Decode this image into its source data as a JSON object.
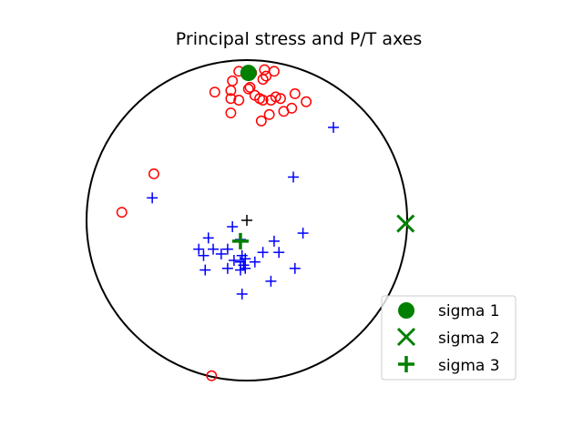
{
  "chart_data": {
    "type": "scatter",
    "projection": "stereonet",
    "title": "Principal stress and P/T axes",
    "grid": false,
    "legend_placement": "lower-right",
    "series": [
      {
        "kind": "P-axes",
        "marker": "circle-open",
        "color": "#ff0000",
        "points": [
          [
            0.03,
            0.92
          ],
          [
            -0.05,
            0.93
          ],
          [
            0.11,
            0.94
          ],
          [
            0.17,
            0.93
          ],
          [
            0.12,
            0.9
          ],
          [
            0.1,
            0.88
          ],
          [
            -0.09,
            0.87
          ],
          [
            -0.2,
            0.8
          ],
          [
            -0.1,
            0.81
          ],
          [
            0.02,
            0.83
          ],
          [
            0.05,
            0.78
          ],
          [
            0.08,
            0.76
          ],
          [
            0.1,
            0.75
          ],
          [
            0.15,
            0.75
          ],
          [
            0.18,
            0.77
          ],
          [
            0.21,
            0.76
          ],
          [
            0.3,
            0.79
          ],
          [
            0.37,
            0.74
          ],
          [
            0.28,
            0.7
          ],
          [
            0.23,
            0.68
          ],
          [
            0.14,
            0.66
          ],
          [
            -0.1,
            0.67
          ],
          [
            0.09,
            0.62
          ],
          [
            -0.05,
            0.75
          ],
          [
            -0.1,
            0.76
          ],
          [
            -0.58,
            0.29
          ],
          [
            -0.78,
            0.05
          ],
          [
            -0.22,
            -0.97
          ],
          [
            0.01,
            0.82
          ]
        ]
      },
      {
        "kind": "T-axes",
        "marker": "plus",
        "color": "#0000ff",
        "points": [
          [
            0.54,
            0.58
          ],
          [
            0.29,
            0.27
          ],
          [
            -0.59,
            0.14
          ],
          [
            -0.09,
            -0.04
          ],
          [
            0.35,
            -0.08
          ],
          [
            -0.24,
            -0.11
          ],
          [
            -0.04,
            -0.12
          ],
          [
            0.17,
            -0.13
          ],
          [
            -0.3,
            -0.18
          ],
          [
            -0.21,
            -0.18
          ],
          [
            -0.12,
            -0.18
          ],
          [
            -0.16,
            -0.21
          ],
          [
            -0.27,
            -0.22
          ],
          [
            0.1,
            -0.2
          ],
          [
            0.2,
            -0.2
          ],
          [
            -0.03,
            -0.22
          ],
          [
            -0.01,
            -0.24
          ],
          [
            0.05,
            -0.26
          ],
          [
            -0.08,
            -0.25
          ],
          [
            -0.04,
            -0.26
          ],
          [
            -0.02,
            -0.28
          ],
          [
            -0.01,
            -0.3
          ],
          [
            -0.26,
            -0.31
          ],
          [
            -0.12,
            -0.3
          ],
          [
            -0.04,
            -0.31
          ],
          [
            0.3,
            -0.3
          ],
          [
            0.15,
            -0.38
          ],
          [
            -0.03,
            -0.46
          ],
          [
            -0.02,
            -0.28
          ]
        ]
      },
      {
        "name": "sigma 1",
        "marker": "filled-circle",
        "color": "#008000",
        "points": [
          [
            0.01,
            0.92
          ]
        ]
      },
      {
        "name": "sigma 2",
        "marker": "x",
        "color": "#008000",
        "points": [
          [
            0.99,
            -0.02
          ]
        ]
      },
      {
        "name": "sigma 3",
        "marker": "plus",
        "color": "#008000",
        "points": [
          [
            -0.04,
            -0.13
          ]
        ]
      }
    ],
    "center_marker": {
      "marker": "plus",
      "color": "#000000",
      "point": [
        0,
        0
      ]
    },
    "xlim": [
      -1,
      1
    ],
    "ylim": [
      -1,
      1
    ]
  }
}
